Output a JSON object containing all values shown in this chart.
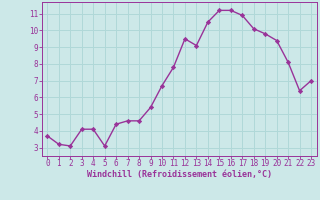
{
  "x": [
    0,
    1,
    2,
    3,
    4,
    5,
    6,
    7,
    8,
    9,
    10,
    11,
    12,
    13,
    14,
    15,
    16,
    17,
    18,
    19,
    20,
    21,
    22,
    23
  ],
  "y": [
    3.7,
    3.2,
    3.1,
    4.1,
    4.1,
    3.1,
    4.4,
    4.6,
    4.6,
    5.4,
    6.7,
    7.8,
    9.5,
    9.1,
    10.5,
    11.2,
    11.2,
    10.9,
    10.1,
    9.8,
    9.4,
    8.1,
    6.4,
    7.0
  ],
  "line_color": "#993399",
  "marker": "D",
  "marker_size": 2.2,
  "bg_color": "#cce8e8",
  "grid_color": "#b0d8d8",
  "xlabel": "Windchill (Refroidissement éolien,°C)",
  "xlabel_color": "#993399",
  "tick_color": "#993399",
  "axis_color": "#993399",
  "ylim": [
    2.5,
    11.7
  ],
  "xlim": [
    -0.5,
    23.5
  ],
  "yticks": [
    3,
    4,
    5,
    6,
    7,
    8,
    9,
    10,
    11
  ],
  "xticks": [
    0,
    1,
    2,
    3,
    4,
    5,
    6,
    7,
    8,
    9,
    10,
    11,
    12,
    13,
    14,
    15,
    16,
    17,
    18,
    19,
    20,
    21,
    22,
    23
  ],
  "tick_fontsize": 5.5,
  "xlabel_fontsize": 6.0,
  "linewidth": 1.0
}
